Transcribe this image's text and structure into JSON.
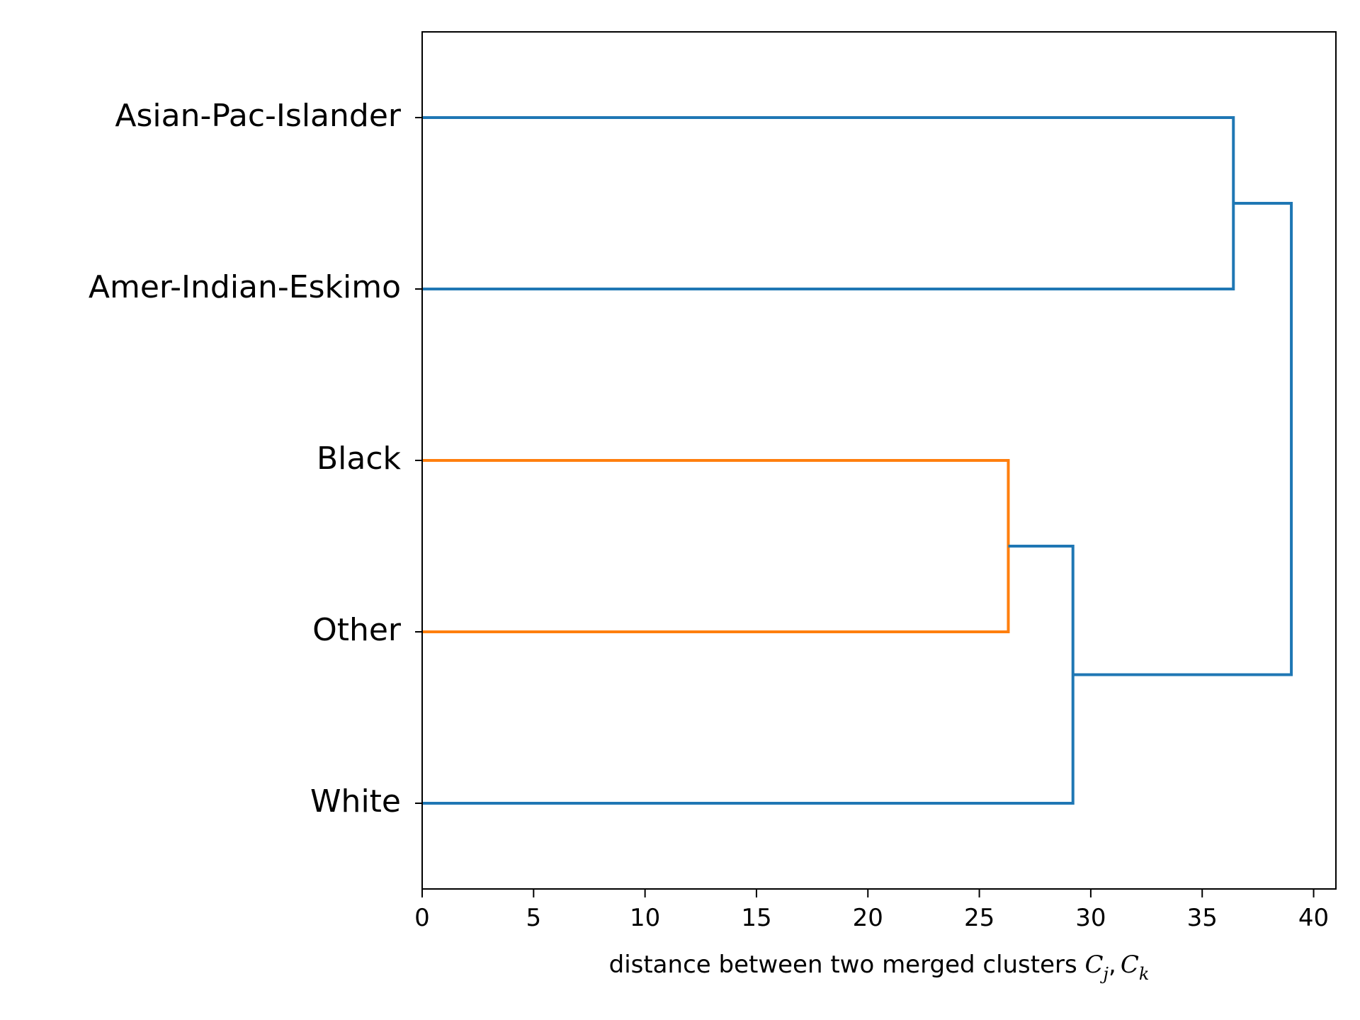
{
  "chart_data": {
    "type": "dendrogram",
    "orientation": "horizontal",
    "leaves": [
      "Asian-Pac-Islander",
      "Amer-Indian-Eskimo",
      "Black",
      "Other",
      "White"
    ],
    "merges": [
      {
        "id": "m1",
        "children": [
          "Black",
          "Other"
        ],
        "distance": 26.3,
        "color": "#ff7f0e"
      },
      {
        "id": "m2",
        "children": [
          "m1",
          "White"
        ],
        "distance": 29.2,
        "color": "#1f77b4"
      },
      {
        "id": "m3",
        "children": [
          "Asian-Pac-Islander",
          "Amer-Indian-Eskimo"
        ],
        "distance": 36.4,
        "color": "#1f77b4"
      },
      {
        "id": "m4",
        "children": [
          "m3",
          "m2"
        ],
        "distance": 39.0,
        "color": "#1f77b4"
      }
    ],
    "xlim": [
      0,
      41
    ],
    "xticks": [
      0,
      5,
      10,
      15,
      20,
      25,
      30,
      35,
      40
    ],
    "xlabel": {
      "text": "distance between two merged clusters ",
      "math_c": "C",
      "math_sub_j": "j",
      "math_sep": ",",
      "math_sub_k": "k"
    },
    "grid": false,
    "colors": {
      "above_threshold": "#1f77b4",
      "cluster": "#ff7f0e",
      "axes": "#000000"
    }
  }
}
